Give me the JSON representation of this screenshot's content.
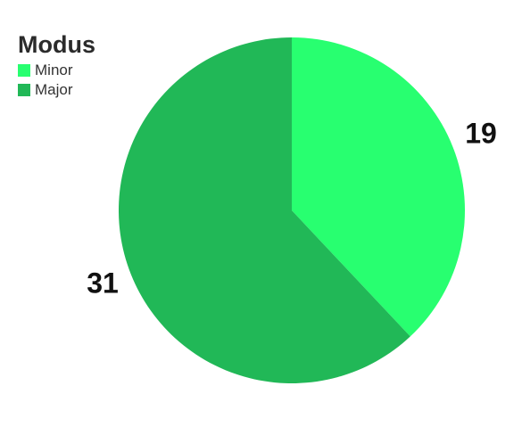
{
  "chart_data": {
    "type": "pie",
    "legend_title": "Modus",
    "legend_position": "top-left",
    "slices": [
      {
        "label": "Minor",
        "value": 19,
        "color": "#28FF70"
      },
      {
        "label": "Major",
        "value": 31,
        "color": "#21B857"
      }
    ]
  }
}
